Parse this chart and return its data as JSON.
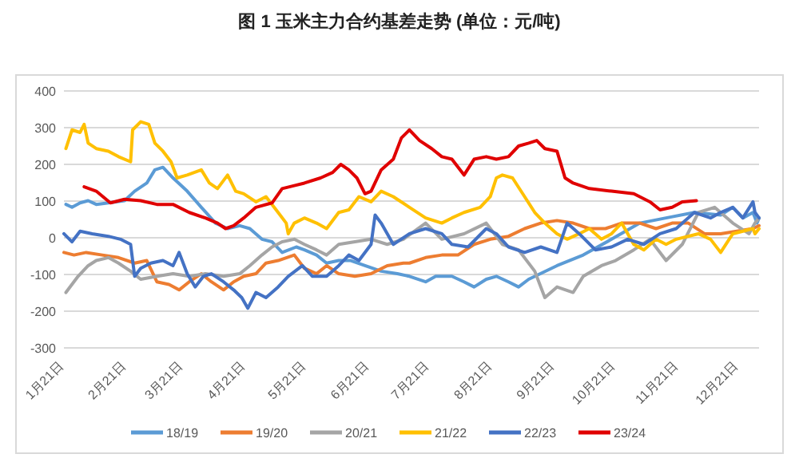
{
  "chart_data": {
    "type": "line",
    "title": "图 1  玉米主力合约基差走势  (单位：元/吨)",
    "xlim": [
      "--01-21",
      "--12-31"
    ],
    "ylim": [
      -300,
      400
    ],
    "yticks": [
      -300,
      -200,
      -100,
      0,
      100,
      200,
      300,
      400
    ],
    "xticks": [
      {
        "value": "--01-21",
        "label": "1月21日"
      },
      {
        "value": "--02-21",
        "label": "2月21日"
      },
      {
        "value": "--03-21",
        "label": "3月21日"
      },
      {
        "value": "--04-21",
        "label": "4月21日"
      },
      {
        "value": "--05-21",
        "label": "5月21日"
      },
      {
        "value": "--06-21",
        "label": "6月21日"
      },
      {
        "value": "--07-21",
        "label": "7月21日"
      },
      {
        "value": "--08-21",
        "label": "8月21日"
      },
      {
        "value": "--09-21",
        "label": "9月21日"
      },
      {
        "value": "--10-21",
        "label": "10月21日"
      },
      {
        "value": "--11-21",
        "label": "11月21日"
      },
      {
        "value": "--12-21",
        "label": "12月21日"
      }
    ],
    "grid": "y",
    "legend": "bottom",
    "series": [
      {
        "name": "18/19",
        "color": "#5b9bd5",
        "x": [
          "--01-22",
          "--01-25",
          "--01-29",
          "--02-02",
          "--02-06",
          "--02-12",
          "--02-20",
          "--02-25",
          "--03-03",
          "--03-07",
          "--03-11",
          "--03-16",
          "--03-23",
          "--03-30",
          "--04-06",
          "--04-12",
          "--04-18",
          "--04-23",
          "--04-29",
          "--05-04",
          "--05-09",
          "--05-16",
          "--05-20",
          "--05-26",
          "--05-31",
          "--06-06",
          "--06-12",
          "--06-19",
          "--06-27",
          "--07-05",
          "--07-11",
          "--07-19",
          "--07-24",
          "--08-01",
          "--08-07",
          "--08-12",
          "--08-18",
          "--08-23",
          "--08-29",
          "--09-03",
          "--09-08",
          "--09-22",
          "--10-05",
          "--10-19",
          "--11-02",
          "--11-15",
          "--11-29",
          "--12-12",
          "--12-18",
          "--12-23",
          "--12-28",
          "--12-30",
          "--12-31"
        ],
        "values": [
          91,
          83,
          95,
          101,
          91,
          95,
          101,
          127,
          149,
          185,
          192,
          163,
          127,
          83,
          40,
          25,
          33,
          25,
          -4,
          -11,
          -40,
          -25,
          -33,
          -47,
          -69,
          -62,
          -62,
          -76,
          -91,
          -98,
          -105,
          -120,
          -105,
          -105,
          -120,
          -134,
          -113,
          -105,
          -120,
          -134,
          -113,
          -76,
          -47,
          -4,
          40,
          54,
          69,
          62,
          83,
          54,
          69,
          40,
          54
        ]
      },
      {
        "name": "19/20",
        "color": "#ed7d31",
        "x": [
          "--01-21",
          "--01-26",
          "--02-01",
          "--02-09",
          "--02-17",
          "--02-25",
          "--03-03",
          "--03-08",
          "--03-14",
          "--03-19",
          "--03-24",
          "--03-30",
          "--04-04",
          "--04-10",
          "--04-15",
          "--04-20",
          "--04-26",
          "--05-01",
          "--05-07",
          "--05-15",
          "--05-20",
          "--05-26",
          "--05-31",
          "--06-06",
          "--06-14",
          "--06-22",
          "--06-30",
          "--07-08",
          "--07-11",
          "--07-19",
          "--07-27",
          "--08-04",
          "--08-12",
          "--08-20",
          "--08-29",
          "--09-06",
          "--09-14",
          "--09-22",
          "--09-30",
          "--10-08",
          "--10-16",
          "--10-24",
          "--11-02",
          "--11-10",
          "--11-18",
          "--11-26",
          "--12-04",
          "--12-12",
          "--12-20",
          "--12-28",
          "--12-31"
        ],
        "values": [
          -40,
          -47,
          -40,
          -47,
          -54,
          -69,
          -62,
          -120,
          -127,
          -142,
          -120,
          -98,
          -120,
          -142,
          -120,
          -105,
          -98,
          -69,
          -62,
          -47,
          -83,
          -98,
          -76,
          -98,
          -105,
          -98,
          -76,
          -69,
          -69,
          -54,
          -47,
          -47,
          -18,
          -4,
          4,
          25,
          40,
          47,
          40,
          25,
          25,
          40,
          40,
          25,
          40,
          40,
          11,
          11,
          18,
          25,
          33
        ]
      },
      {
        "name": "20/21",
        "color": "#a5a5a5",
        "x": [
          "--01-22",
          "--01-28",
          "--02-02",
          "--02-06",
          "--02-12",
          "--02-17",
          "--02-23",
          "--02-28",
          "--03-08",
          "--03-16",
          "--03-24",
          "--04-01",
          "--04-10",
          "--04-18",
          "--04-23",
          "--04-29",
          "--05-04",
          "--05-09",
          "--05-15",
          "--05-20",
          "--05-26",
          "--05-31",
          "--06-06",
          "--06-14",
          "--06-22",
          "--06-30",
          "--07-08",
          "--07-19",
          "--07-27",
          "--08-07",
          "--08-18",
          "--08-26",
          "--09-03",
          "--09-11",
          "--09-16",
          "--09-22",
          "--09-30",
          "--10-05",
          "--10-14",
          "--10-21",
          "--10-30",
          "--11-07",
          "--11-15",
          "--11-23",
          "--12-01",
          "--12-09",
          "--12-18",
          "--12-26",
          "--12-29",
          "--12-31"
        ],
        "values": [
          -149,
          -105,
          -76,
          -62,
          -54,
          -69,
          -91,
          -113,
          -105,
          -98,
          -105,
          -98,
          -105,
          -98,
          -76,
          -47,
          -25,
          -11,
          -4,
          -18,
          -33,
          -47,
          -18,
          -11,
          -4,
          -18,
          -4,
          40,
          -4,
          11,
          40,
          -18,
          -33,
          -91,
          -163,
          -134,
          -149,
          -105,
          -76,
          -62,
          -33,
          -4,
          -62,
          -18,
          69,
          83,
          40,
          11,
          40,
          54
        ]
      },
      {
        "name": "21/22",
        "color": "#ffc000",
        "x": [
          "--01-22",
          "--01-25",
          "--01-29",
          "--01-31",
          "--02-02",
          "--02-06",
          "--02-12",
          "--02-17",
          "--02-23",
          "--02-24",
          "--02-28",
          "--03-04",
          "--03-07",
          "--03-11",
          "--03-15",
          "--03-18",
          "--03-23",
          "--03-30",
          "--04-03",
          "--04-07",
          "--04-12",
          "--04-16",
          "--04-20",
          "--04-26",
          "--05-01",
          "--05-07",
          "--05-11",
          "--05-12",
          "--05-15",
          "--05-20",
          "--05-26",
          "--05-31",
          "--06-06",
          "--06-11",
          "--06-16",
          "--06-22",
          "--06-27",
          "--07-03",
          "--07-11",
          "--07-19",
          "--07-27",
          "--08-01",
          "--08-07",
          "--08-15",
          "--08-20",
          "--08-23",
          "--08-26",
          "--08-31",
          "--09-06",
          "--09-11",
          "--09-16",
          "--09-22",
          "--09-27",
          "--10-03",
          "--10-08",
          "--10-14",
          "--10-19",
          "--10-24",
          "--10-30",
          "--11-04",
          "--11-10",
          "--11-15",
          "--11-20",
          "--12-01",
          "--12-07",
          "--12-12",
          "--12-18",
          "--12-23",
          "--12-28",
          "--12-29",
          "--12-31"
        ],
        "values": [
          243,
          294,
          287,
          309,
          258,
          243,
          236,
          221,
          207,
          294,
          316,
          309,
          258,
          236,
          207,
          163,
          171,
          185,
          149,
          134,
          171,
          127,
          120,
          98,
          112,
          69,
          40,
          11,
          40,
          54,
          40,
          25,
          69,
          76,
          112,
          98,
          127,
          112,
          83,
          54,
          40,
          54,
          69,
          83,
          112,
          163,
          171,
          163,
          112,
          69,
          40,
          11,
          -4,
          11,
          25,
          -4,
          11,
          40,
          -18,
          -33,
          -4,
          -18,
          -4,
          11,
          -4,
          -40,
          11,
          18,
          25,
          11,
          25
        ]
      },
      {
        "name": "22/23",
        "color": "#4472c4",
        "x": [
          "--01-21",
          "--01-25",
          "--01-29",
          "--02-04",
          "--02-12",
          "--02-18",
          "--02-23",
          "--02-25",
          "--02-28",
          "--03-05",
          "--03-11",
          "--03-16",
          "--03-19",
          "--03-23",
          "--03-27",
          "--03-31",
          "--04-04",
          "--04-10",
          "--04-15",
          "--04-19",
          "--04-22",
          "--04-26",
          "--05-01",
          "--05-07",
          "--05-12",
          "--05-19",
          "--05-24",
          "--05-31",
          "--06-06",
          "--06-11",
          "--06-16",
          "--06-22",
          "--06-24",
          "--06-27",
          "--07-03",
          "--07-11",
          "--07-19",
          "--07-27",
          "--08-01",
          "--08-09",
          "--08-18",
          "--08-23",
          "--08-29",
          "--09-06",
          "--09-14",
          "--09-22",
          "--09-27",
          "--10-03",
          "--10-11",
          "--10-19",
          "--10-27",
          "--11-04",
          "--11-12",
          "--11-20",
          "--11-29",
          "--12-07",
          "--12-12",
          "--12-18",
          "--12-23",
          "--12-28",
          "--12-29",
          "--12-31"
        ],
        "values": [
          11,
          -11,
          18,
          11,
          4,
          -4,
          -18,
          -105,
          -83,
          -69,
          -62,
          -76,
          -40,
          -98,
          -134,
          -105,
          -98,
          -120,
          -142,
          -163,
          -192,
          -149,
          -163,
          -134,
          -105,
          -76,
          -105,
          -105,
          -76,
          -47,
          -62,
          -18,
          62,
          40,
          -18,
          11,
          25,
          11,
          -18,
          -25,
          25,
          11,
          -25,
          -40,
          -25,
          -40,
          40,
          11,
          -33,
          -25,
          -4,
          -18,
          11,
          25,
          69,
          54,
          69,
          83,
          54,
          98,
          69,
          54
        ]
      },
      {
        "name": "23/24",
        "color": "#e00000",
        "x": [
          "--01-31",
          "--02-06",
          "--02-13",
          "--02-20",
          "--02-28",
          "--03-08",
          "--03-16",
          "--03-24",
          "--04-01",
          "--04-07",
          "--04-11",
          "--04-15",
          "--04-20",
          "--04-26",
          "--05-04",
          "--05-09",
          "--05-15",
          "--05-20",
          "--05-28",
          "--06-03",
          "--06-07",
          "--06-11",
          "--06-15",
          "--06-19",
          "--06-22",
          "--06-27",
          "--07-03",
          "--07-07",
          "--07-11",
          "--07-16",
          "--07-22",
          "--07-27",
          "--08-01",
          "--08-07",
          "--08-12",
          "--08-18",
          "--08-23",
          "--08-29",
          "--09-03",
          "--09-08",
          "--09-12",
          "--09-16",
          "--09-22",
          "--09-26",
          "--09-30",
          "--10-08",
          "--10-19",
          "--10-30",
          "--11-07",
          "--11-12",
          "--11-18",
          "--11-23",
          "--11-30"
        ],
        "values": [
          139,
          127,
          95,
          105,
          101,
          91,
          91,
          69,
          54,
          40,
          25,
          33,
          54,
          83,
          95,
          134,
          142,
          149,
          163,
          178,
          200,
          185,
          163,
          120,
          127,
          185,
          214,
          272,
          294,
          265,
          243,
          221,
          214,
          171,
          214,
          221,
          214,
          221,
          250,
          258,
          265,
          243,
          236,
          163,
          149,
          134,
          127,
          120,
          98,
          76,
          83,
          98,
          101
        ]
      }
    ]
  }
}
